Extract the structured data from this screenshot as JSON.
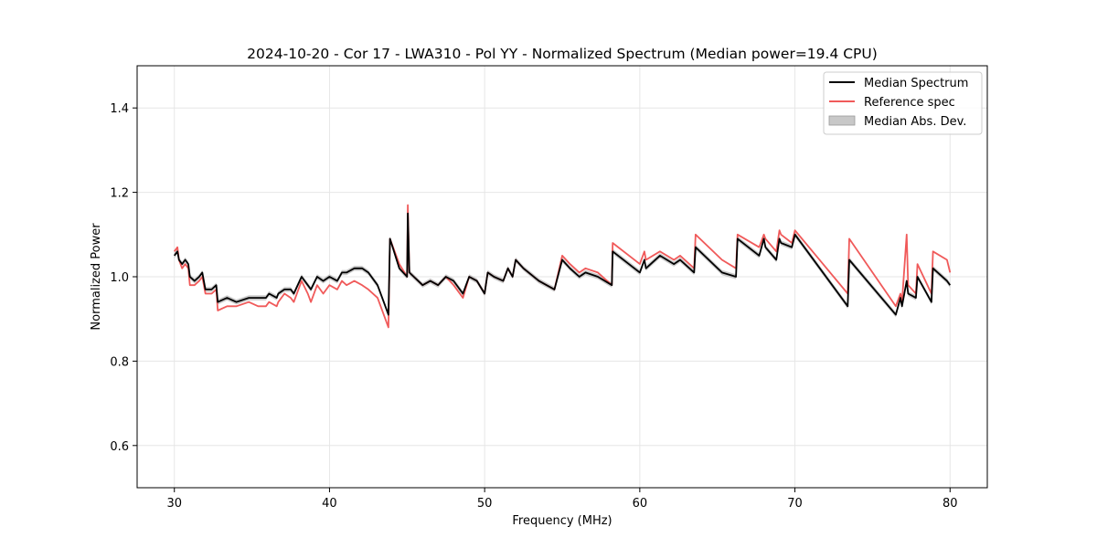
{
  "chart_data": {
    "type": "line",
    "title": "2024-10-20 - Cor 17 - LWA310 - Pol YY - Normalized Spectrum (Median power=19.4 CPU)",
    "xlabel": "Frequency (MHz)",
    "ylabel": "Normalized Power",
    "xlim": [
      27.6,
      82.4
    ],
    "ylim": [
      0.5,
      1.5
    ],
    "xticks": [
      30,
      40,
      50,
      60,
      70,
      80
    ],
    "yticks": [
      0.6,
      0.8,
      1.0,
      1.2,
      1.4
    ],
    "xtick_labels": [
      "30",
      "40",
      "50",
      "60",
      "70",
      "80"
    ],
    "ytick_labels": [
      "0.6",
      "0.8",
      "1.0",
      "1.2",
      "1.4"
    ],
    "grid": true,
    "legend_position": "top-right",
    "legend": [
      "Median Spectrum",
      "Reference spec",
      "Median Abs. Dev."
    ],
    "colors": {
      "median": "#000000",
      "reference": "#f05a5a",
      "mad": "#bdbdbd"
    },
    "series": [
      {
        "name": "Median Spectrum",
        "x": [
          30.0,
          30.2,
          30.3,
          30.5,
          30.7,
          30.9,
          31.0,
          31.3,
          31.6,
          31.8,
          32.0,
          32.4,
          32.7,
          32.8,
          33.4,
          34.0,
          34.8,
          35.4,
          35.9,
          36.1,
          36.6,
          36.7,
          37.1,
          37.5,
          37.7,
          38.2,
          38.6,
          38.8,
          39.2,
          39.6,
          40.0,
          40.5,
          40.8,
          41.1,
          41.6,
          42.1,
          42.5,
          43.1,
          43.8,
          43.9,
          44.5,
          45.0,
          45.05,
          45.15,
          46.0,
          46.5,
          47.0,
          47.5,
          48.0,
          48.6,
          49.0,
          49.5,
          50.0,
          50.2,
          50.6,
          51.2,
          51.5,
          51.8,
          52.0,
          52.5,
          53.5,
          54.5,
          55.0,
          55.5,
          56.1,
          56.5,
          57.3,
          58.2,
          58.25,
          60.0,
          60.3,
          60.4,
          61.3,
          62.2,
          62.6,
          63.5,
          63.6,
          65.3,
          66.2,
          66.3,
          67.7,
          68.0,
          68.1,
          68.8,
          69.0,
          69.1,
          69.8,
          70.0,
          73.4,
          73.5,
          76.5,
          76.8,
          76.9,
          77.2,
          77.3,
          77.8,
          77.9,
          78.8,
          78.9,
          79.8,
          80.0
        ],
        "values": [
          1.05,
          1.06,
          1.04,
          1.03,
          1.04,
          1.03,
          1.0,
          0.99,
          1.0,
          1.01,
          0.97,
          0.97,
          0.98,
          0.94,
          0.95,
          0.94,
          0.95,
          0.95,
          0.95,
          0.96,
          0.95,
          0.96,
          0.97,
          0.97,
          0.96,
          1.0,
          0.98,
          0.97,
          1.0,
          0.99,
          1.0,
          0.99,
          1.01,
          1.01,
          1.02,
          1.02,
          1.01,
          0.98,
          0.91,
          1.09,
          1.02,
          1.0,
          1.15,
          1.01,
          0.98,
          0.99,
          0.98,
          1.0,
          0.99,
          0.96,
          1.0,
          0.99,
          0.96,
          1.01,
          1.0,
          0.99,
          1.02,
          1.0,
          1.04,
          1.02,
          0.99,
          0.97,
          1.04,
          1.02,
          1.0,
          1.01,
          1.0,
          0.98,
          1.06,
          1.01,
          1.04,
          1.02,
          1.05,
          1.03,
          1.04,
          1.01,
          1.07,
          1.01,
          1.0,
          1.09,
          1.05,
          1.09,
          1.07,
          1.04,
          1.09,
          1.08,
          1.07,
          1.1,
          0.93,
          1.04,
          0.91,
          0.95,
          0.93,
          0.99,
          0.96,
          0.95,
          1.0,
          0.94,
          1.02,
          0.99,
          0.98
        ]
      },
      {
        "name": "Reference spec",
        "x": [
          30.0,
          30.2,
          30.3,
          30.5,
          30.7,
          30.9,
          31.0,
          31.3,
          31.6,
          31.8,
          32.0,
          32.4,
          32.7,
          32.8,
          33.4,
          34.0,
          34.8,
          35.4,
          35.9,
          36.1,
          36.6,
          36.7,
          37.1,
          37.5,
          37.7,
          38.2,
          38.6,
          38.8,
          39.2,
          39.6,
          40.0,
          40.5,
          40.8,
          41.1,
          41.6,
          42.1,
          42.5,
          43.1,
          43.8,
          43.9,
          44.5,
          45.0,
          45.05,
          45.15,
          46.0,
          46.5,
          47.0,
          47.5,
          48.0,
          48.6,
          49.0,
          49.5,
          50.0,
          50.2,
          50.6,
          51.2,
          51.5,
          51.8,
          52.0,
          52.5,
          53.5,
          54.5,
          55.0,
          55.5,
          56.1,
          56.5,
          57.3,
          58.2,
          58.25,
          60.0,
          60.3,
          60.4,
          61.3,
          62.2,
          62.6,
          63.5,
          63.6,
          65.3,
          66.2,
          66.3,
          67.7,
          68.0,
          68.1,
          68.8,
          69.0,
          69.1,
          69.8,
          70.0,
          73.4,
          73.5,
          76.5,
          76.8,
          76.9,
          77.2,
          77.3,
          77.8,
          77.9,
          78.8,
          78.9,
          79.8,
          80.0
        ],
        "values": [
          1.06,
          1.07,
          1.04,
          1.02,
          1.03,
          1.02,
          0.98,
          0.98,
          0.99,
          1.0,
          0.96,
          0.96,
          0.97,
          0.92,
          0.93,
          0.93,
          0.94,
          0.93,
          0.93,
          0.94,
          0.93,
          0.94,
          0.96,
          0.95,
          0.94,
          0.99,
          0.96,
          0.94,
          0.98,
          0.96,
          0.98,
          0.97,
          0.99,
          0.98,
          0.99,
          0.98,
          0.97,
          0.95,
          0.88,
          1.09,
          1.03,
          1.0,
          1.17,
          1.01,
          0.98,
          0.99,
          0.98,
          1.0,
          0.98,
          0.95,
          1.0,
          0.99,
          0.96,
          1.01,
          1.0,
          0.99,
          1.02,
          1.0,
          1.04,
          1.02,
          0.99,
          0.97,
          1.05,
          1.03,
          1.01,
          1.02,
          1.01,
          0.98,
          1.08,
          1.03,
          1.06,
          1.04,
          1.06,
          1.04,
          1.05,
          1.02,
          1.1,
          1.04,
          1.02,
          1.1,
          1.07,
          1.1,
          1.09,
          1.06,
          1.11,
          1.1,
          1.08,
          1.11,
          0.96,
          1.09,
          0.93,
          0.96,
          0.94,
          1.1,
          0.98,
          0.96,
          1.03,
          0.96,
          1.06,
          1.04,
          1.01
        ]
      }
    ],
    "mad_halfwidth": 0.006
  }
}
